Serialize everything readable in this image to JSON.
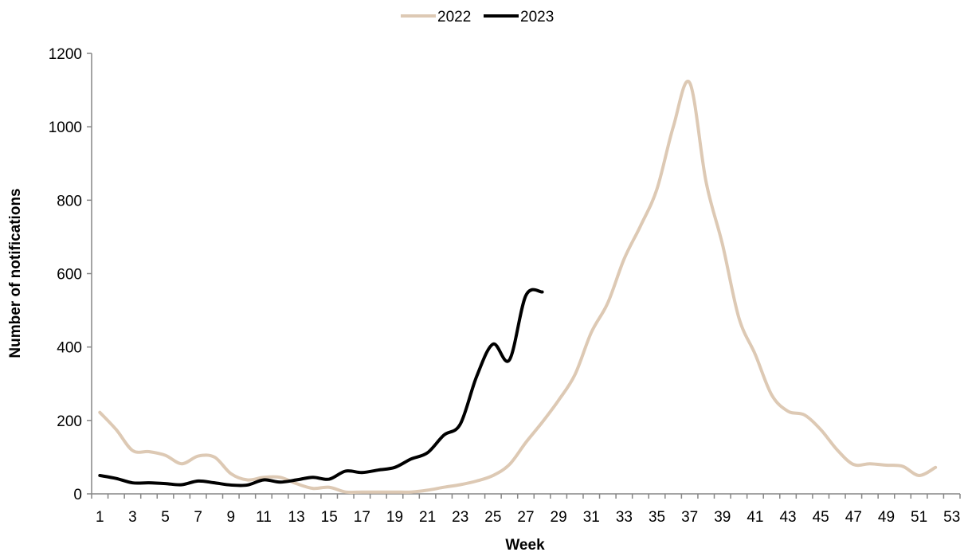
{
  "chart_data": {
    "type": "line",
    "title": "",
    "xlabel": "Week",
    "ylabel": "Number of notifications",
    "xlim": [
      1,
      53
    ],
    "ylim": [
      0,
      1200
    ],
    "x_ticks": [
      "1",
      "3",
      "5",
      "7",
      "9",
      "11",
      "13",
      "15",
      "17",
      "19",
      "21",
      "23",
      "25",
      "27",
      "29",
      "31",
      "33",
      "35",
      "37",
      "39",
      "41",
      "43",
      "45",
      "47",
      "49",
      "51",
      "53"
    ],
    "y_ticks": [
      "0",
      "200",
      "400",
      "600",
      "800",
      "1000",
      "1200"
    ],
    "grid": false,
    "legend_position": "top",
    "series": [
      {
        "name": "2022",
        "color": "#DDC9B4",
        "x": [
          1,
          2,
          3,
          4,
          5,
          6,
          7,
          8,
          9,
          10,
          11,
          12,
          13,
          14,
          15,
          16,
          17,
          18,
          19,
          20,
          21,
          22,
          23,
          24,
          25,
          26,
          27,
          28,
          29,
          30,
          31,
          32,
          33,
          34,
          35,
          36,
          37,
          38,
          39,
          40,
          41,
          42,
          43,
          44,
          45,
          46,
          47,
          48,
          49,
          50,
          51,
          52
        ],
        "values": [
          222,
          175,
          118,
          115,
          105,
          82,
          103,
          100,
          55,
          38,
          45,
          45,
          28,
          15,
          18,
          5,
          5,
          5,
          5,
          5,
          10,
          18,
          25,
          35,
          50,
          80,
          140,
          195,
          255,
          325,
          440,
          520,
          640,
          730,
          830,
          1000,
          1120,
          850,
          680,
          480,
          380,
          270,
          225,
          215,
          175,
          120,
          80,
          82,
          78,
          75,
          50,
          72
        ]
      },
      {
        "name": "2023",
        "color": "#000000",
        "x": [
          1,
          2,
          3,
          4,
          5,
          6,
          7,
          8,
          9,
          10,
          11,
          12,
          13,
          14,
          15,
          16,
          17,
          18,
          19,
          20,
          21,
          22,
          23,
          24,
          25,
          26,
          27,
          28
        ],
        "values": [
          50,
          42,
          30,
          30,
          28,
          25,
          35,
          30,
          24,
          24,
          38,
          32,
          38,
          45,
          40,
          62,
          58,
          65,
          72,
          95,
          112,
          160,
          190,
          320,
          408,
          365,
          540,
          550
        ]
      }
    ]
  }
}
